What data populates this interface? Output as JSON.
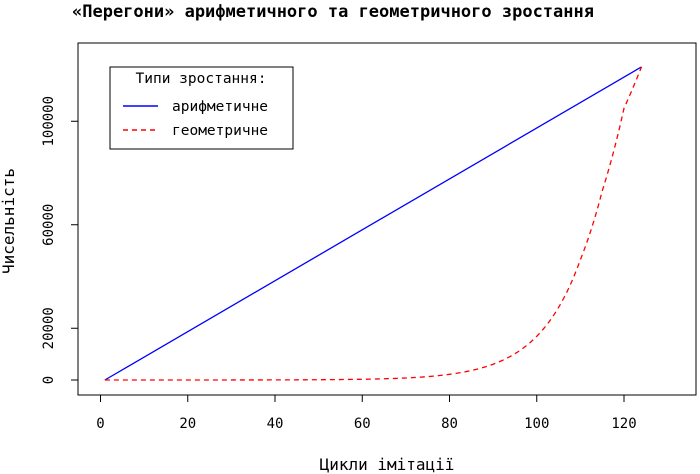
{
  "chart_data": {
    "type": "line",
    "title": "«Перегони» арифметичного та геометричного зростання",
    "xlabel": "Цикли імітації",
    "ylabel": "Чисельність",
    "xlim": [
      1,
      124
    ],
    "ylim": [
      0,
      121000
    ],
    "x_ticks": [
      0,
      20,
      40,
      60,
      80,
      100,
      120
    ],
    "y_ticks": [
      0,
      20000,
      60000,
      100000
    ],
    "x_tick_labels": [
      "0",
      "20",
      "40",
      "60",
      "80",
      "100",
      "120"
    ],
    "y_tick_labels": [
      "0",
      "20000",
      "60000",
      "100000"
    ],
    "legend": {
      "title": "Типи зростання:",
      "position": "top-left"
    },
    "series": [
      {
        "name": "арифметичне",
        "color": "#0000ff",
        "style": "solid",
        "formula": "linear",
        "x_start": 1,
        "y_start": 0,
        "x_end": 124,
        "y_end": 121000
      },
      {
        "name": "геометричне",
        "color": "#ff0000",
        "style": "dashed",
        "formula": "exponential",
        "points": [
          [
            1,
            0
          ],
          [
            20,
            5
          ],
          [
            40,
            40
          ],
          [
            60,
            290
          ],
          [
            70,
            780
          ],
          [
            80,
            2200
          ],
          [
            90,
            6100
          ],
          [
            100,
            16900
          ],
          [
            110,
            46500
          ],
          [
            115,
            73000
          ],
          [
            120,
            105000
          ],
          [
            124,
            121000
          ]
        ]
      }
    ]
  }
}
